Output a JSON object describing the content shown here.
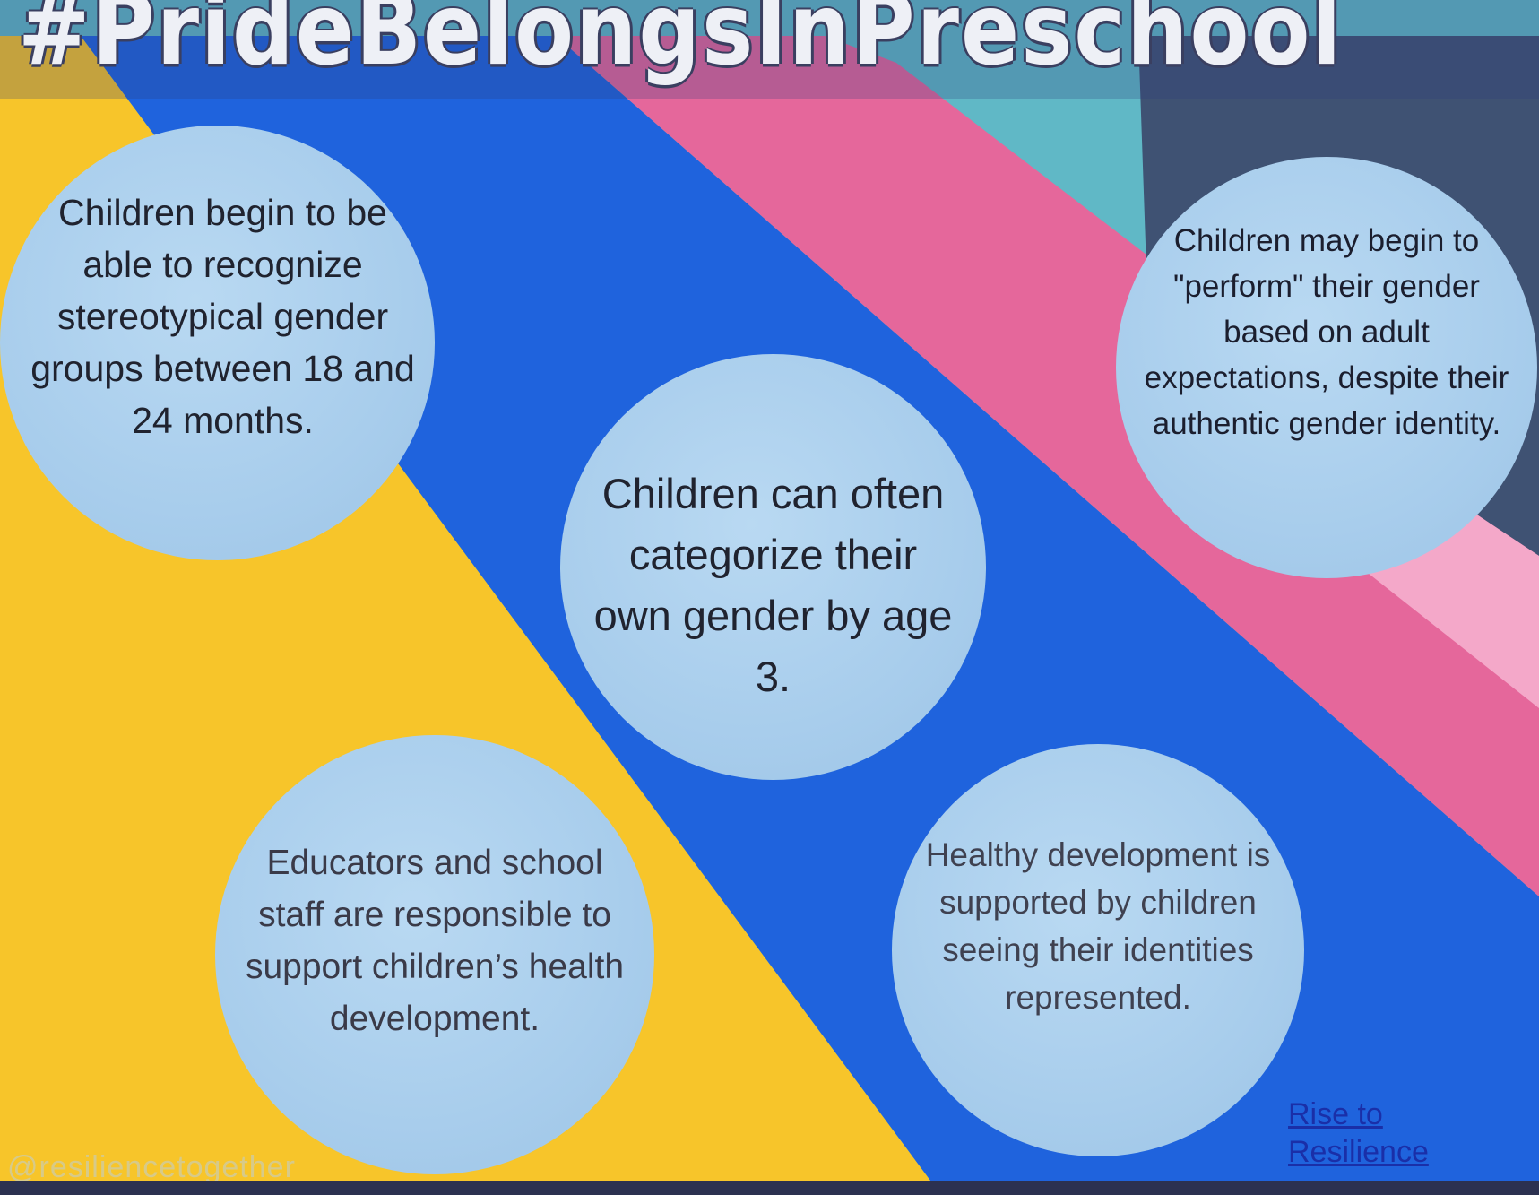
{
  "header": {
    "hashtag": "#PrideBelongsInPreschool"
  },
  "bubbles": {
    "recognize": "Children begin to be able to recognize stereotypical gender groups between 18 and 24 months.",
    "categorize": "Children can often categorize their own gender by age 3.",
    "perform": "Children may begin to \"perform\" their gender based on adult expectations, despite their authentic gender identity.",
    "educators": "Educators and school staff are responsible to support children’s health development.",
    "healthy": "Healthy development is supported by children seeing their identities represented."
  },
  "footer": {
    "link": "Rise to Resilience",
    "watermark": "@resiliencetogether"
  },
  "colors": {
    "yellow": "#f7c52a",
    "blue": "#1f63dd",
    "pink": "#e5679b",
    "teal": "#60b8c6",
    "slate": "#3f5273",
    "bubble": "#a8cdec"
  }
}
